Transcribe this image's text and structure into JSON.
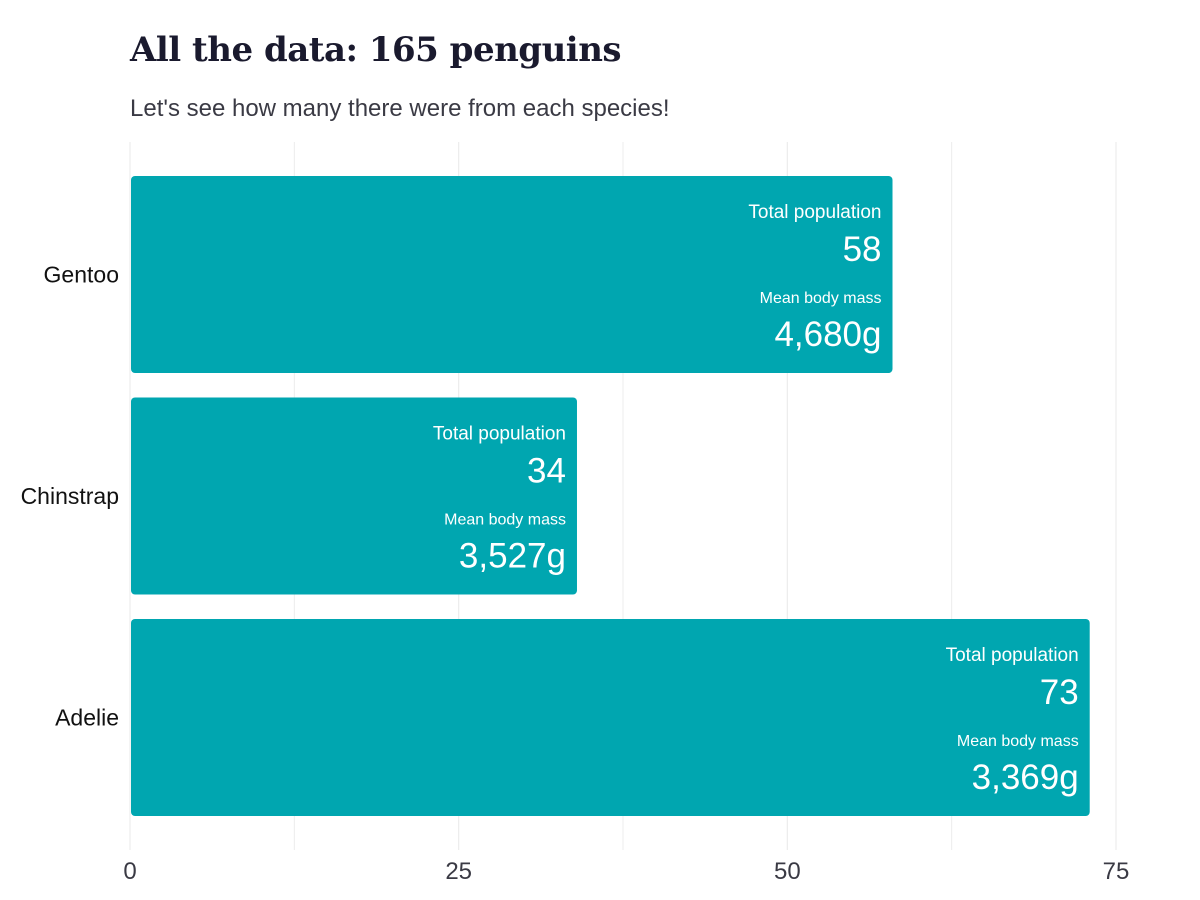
{
  "chart_data": {
    "type": "bar",
    "orientation": "horizontal",
    "title": "All the data: 165 penguins",
    "subtitle": "Let's see how many there were from each species!",
    "categories": [
      "Gentoo",
      "Chinstrap",
      "Adelie"
    ],
    "values": [
      58,
      34,
      73
    ],
    "mean_body_mass": [
      "4,680g",
      "3,527g",
      "3,369g"
    ],
    "value_label_title": "Total population",
    "mass_label_title": "Mean body mass",
    "xlim": [
      0,
      75
    ],
    "x_ticks": [
      0,
      25,
      50,
      75
    ],
    "grid": true,
    "bar_color": "#00A6B0",
    "grid_color": "#ececec"
  }
}
